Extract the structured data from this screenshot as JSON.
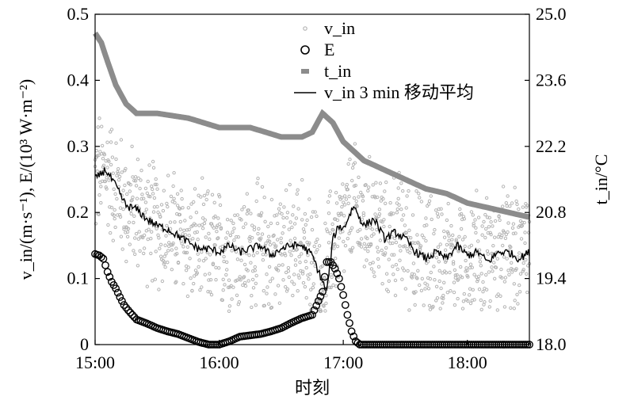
{
  "chart_data": {
    "type": "scatter",
    "xlabel": "时刻",
    "ylabel_left": "v_in/(m·s⁻¹), E/(10³ W·m⁻²)",
    "ylabel_right": "t_in/°C",
    "x_ticks": [
      "15:00",
      "16:00",
      "17:00",
      "18:00"
    ],
    "x_range_min": [
      0,
      210
    ],
    "y_left_ticks": [
      "0",
      "0.1",
      "0.2",
      "0.3",
      "0.4",
      "0.5"
    ],
    "y_left_range": [
      0,
      0.5
    ],
    "y_right_ticks": [
      "18.0",
      "19.4",
      "20.8",
      "22.2",
      "23.6",
      "25.0"
    ],
    "y_right_range": [
      18.0,
      25.0
    ],
    "legend": [
      {
        "id": "vin",
        "label": "v_in",
        "marker": "small-gray-dot"
      },
      {
        "id": "E",
        "label": "E",
        "marker": "open-circle"
      },
      {
        "id": "tin",
        "label": "t_in",
        "marker": "gray-dash"
      },
      {
        "id": "avg",
        "label": "v_in 3 min 移动平均",
        "marker": "black-line"
      }
    ],
    "series": [
      {
        "id": "tin",
        "axis": "right",
        "x": [
          0,
          3,
          6,
          10,
          15,
          20,
          30,
          45,
          60,
          75,
          90,
          100,
          105,
          110,
          115,
          120,
          125,
          130,
          135,
          140,
          150,
          160,
          170,
          180,
          190,
          200,
          210
        ],
        "y": [
          24.6,
          24.4,
          24.0,
          23.5,
          23.1,
          22.9,
          22.9,
          22.8,
          22.6,
          22.6,
          22.4,
          22.4,
          22.5,
          22.9,
          22.7,
          22.3,
          22.1,
          21.9,
          21.8,
          21.7,
          21.5,
          21.3,
          21.2,
          21.0,
          20.9,
          20.8,
          20.7
        ]
      },
      {
        "id": "E",
        "axis": "left",
        "x": [
          0,
          2,
          4,
          6,
          8,
          10,
          12,
          14,
          16,
          18,
          20,
          25,
          30,
          35,
          40,
          45,
          50,
          55,
          60,
          65,
          70,
          75,
          80,
          85,
          90,
          95,
          100,
          105,
          110,
          112,
          114,
          116,
          118,
          120,
          122,
          124,
          126,
          128,
          130,
          135,
          140,
          150,
          160,
          170,
          180,
          190,
          200,
          210
        ],
        "y": [
          0.137,
          0.135,
          0.13,
          0.11,
          0.095,
          0.085,
          0.072,
          0.06,
          0.052,
          0.045,
          0.038,
          0.032,
          0.025,
          0.02,
          0.016,
          0.01,
          0.004,
          0.0,
          0.0,
          0.005,
          0.012,
          0.014,
          0.016,
          0.02,
          0.025,
          0.033,
          0.04,
          0.045,
          0.08,
          0.125,
          0.125,
          0.115,
          0.1,
          0.075,
          0.045,
          0.02,
          0.005,
          0.0,
          0.0,
          0.0,
          0.0,
          0.0,
          0.0,
          0.0,
          0.0,
          0.0,
          0.0,
          0.0
        ]
      },
      {
        "id": "avg",
        "axis": "left",
        "x": [
          0,
          5,
          10,
          15,
          20,
          25,
          30,
          35,
          40,
          45,
          50,
          55,
          60,
          65,
          70,
          75,
          80,
          85,
          90,
          95,
          100,
          105,
          110,
          112,
          115,
          118,
          120,
          125,
          130,
          135,
          140,
          145,
          150,
          155,
          160,
          165,
          170,
          175,
          180,
          185,
          190,
          195,
          200,
          205,
          210
        ],
        "y": [
          0.25,
          0.265,
          0.24,
          0.21,
          0.205,
          0.19,
          0.18,
          0.175,
          0.165,
          0.155,
          0.145,
          0.145,
          0.14,
          0.15,
          0.14,
          0.145,
          0.15,
          0.135,
          0.145,
          0.15,
          0.15,
          0.135,
          0.095,
          0.08,
          0.16,
          0.18,
          0.175,
          0.21,
          0.18,
          0.19,
          0.16,
          0.17,
          0.16,
          0.14,
          0.13,
          0.14,
          0.13,
          0.15,
          0.135,
          0.14,
          0.125,
          0.14,
          0.14,
          0.13,
          0.14
        ]
      },
      {
        "id": "vin",
        "axis": "left",
        "x": [
          0,
          5,
          10,
          15,
          20,
          25,
          30,
          35,
          40,
          45,
          50,
          55,
          60,
          65,
          70,
          75,
          80,
          85,
          90,
          95,
          100,
          105,
          110,
          115,
          120,
          125,
          130,
          135,
          140,
          145,
          150,
          155,
          160,
          165,
          170,
          175,
          180,
          185,
          190,
          195,
          200,
          205,
          210
        ],
        "y": [
          0.25,
          0.265,
          0.24,
          0.21,
          0.205,
          0.19,
          0.18,
          0.175,
          0.165,
          0.155,
          0.145,
          0.145,
          0.14,
          0.15,
          0.14,
          0.145,
          0.15,
          0.135,
          0.145,
          0.15,
          0.15,
          0.135,
          0.09,
          0.16,
          0.175,
          0.21,
          0.18,
          0.19,
          0.16,
          0.17,
          0.16,
          0.14,
          0.13,
          0.14,
          0.13,
          0.15,
          0.135,
          0.14,
          0.125,
          0.14,
          0.14,
          0.13,
          0.14
        ],
        "scatter_spread": 0.07
      }
    ]
  }
}
